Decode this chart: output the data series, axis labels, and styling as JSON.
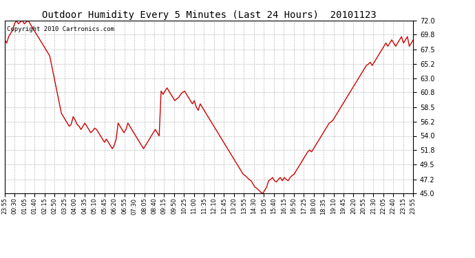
{
  "title": "Outdoor Humidity Every 5 Minutes (Last 24 Hours)  20101123",
  "copyright_text": "Copyright 2010 Cartronics.com",
  "line_color": "#cc0000",
  "background_color": "#ffffff",
  "plot_bg_color": "#ffffff",
  "grid_color": "#aaaaaa",
  "ylim": [
    45.0,
    72.0
  ],
  "yticks": [
    45.0,
    47.2,
    49.5,
    51.8,
    54.0,
    56.2,
    58.5,
    60.8,
    63.0,
    65.2,
    67.5,
    69.8,
    72.0
  ],
  "xtick_labels": [
    "23:55",
    "00:30",
    "01:05",
    "01:40",
    "02:15",
    "02:50",
    "03:25",
    "04:00",
    "04:35",
    "05:10",
    "05:45",
    "06:20",
    "06:55",
    "07:30",
    "08:05",
    "08:40",
    "09:15",
    "09:50",
    "10:25",
    "11:00",
    "11:35",
    "12:10",
    "12:45",
    "13:20",
    "13:55",
    "14:30",
    "15:05",
    "15:40",
    "16:15",
    "16:50",
    "17:25",
    "18:00",
    "18:35",
    "19:10",
    "19:45",
    "20:20",
    "20:55",
    "21:30",
    "22:05",
    "22:40",
    "23:15",
    "23:55"
  ],
  "humidity_values": [
    69.0,
    68.5,
    69.5,
    70.0,
    70.5,
    71.5,
    72.0,
    71.5,
    71.8,
    72.0,
    71.5,
    71.8,
    72.0,
    71.5,
    71.0,
    70.5,
    70.0,
    69.5,
    69.0,
    68.5,
    68.0,
    67.5,
    67.0,
    66.5,
    65.0,
    63.5,
    62.0,
    60.5,
    59.0,
    57.5,
    57.0,
    56.5,
    56.0,
    55.5,
    55.8,
    57.0,
    56.5,
    55.8,
    55.5,
    55.0,
    55.5,
    56.0,
    55.5,
    55.0,
    54.5,
    54.8,
    55.2,
    55.0,
    54.5,
    54.0,
    53.5,
    53.0,
    53.5,
    53.0,
    52.5,
    52.0,
    52.5,
    53.5,
    56.0,
    55.5,
    55.0,
    54.5,
    55.0,
    56.0,
    55.5,
    55.0,
    54.5,
    54.0,
    53.5,
    53.0,
    52.5,
    52.0,
    52.5,
    53.0,
    53.5,
    54.0,
    54.5,
    55.0,
    54.5,
    54.0,
    61.0,
    60.5,
    61.0,
    61.5,
    61.0,
    60.5,
    60.0,
    59.5,
    59.8,
    60.0,
    60.5,
    60.8,
    61.0,
    60.5,
    60.0,
    59.5,
    59.0,
    59.5,
    58.5,
    58.0,
    59.0,
    58.5,
    58.0,
    57.5,
    57.0,
    56.5,
    56.0,
    55.5,
    55.0,
    54.5,
    54.0,
    53.5,
    53.0,
    52.5,
    52.0,
    51.5,
    51.0,
    50.5,
    50.0,
    49.5,
    49.0,
    48.5,
    48.0,
    47.8,
    47.5,
    47.2,
    47.0,
    46.5,
    46.0,
    45.8,
    45.5,
    45.2,
    45.0,
    45.5,
    46.0,
    47.0,
    47.2,
    47.5,
    47.0,
    46.8,
    47.2,
    47.5,
    47.0,
    47.5,
    47.2,
    47.0,
    47.5,
    47.8,
    48.0,
    48.5,
    49.0,
    49.5,
    50.0,
    50.5,
    51.0,
    51.5,
    51.8,
    51.5,
    52.0,
    52.5,
    53.0,
    53.5,
    54.0,
    54.5,
    55.0,
    55.5,
    56.0,
    56.2,
    56.5,
    57.0,
    57.5,
    58.0,
    58.5,
    59.0,
    59.5,
    60.0,
    60.5,
    61.0,
    61.5,
    62.0,
    62.5,
    63.0,
    63.5,
    64.0,
    64.5,
    65.0,
    65.2,
    65.5,
    65.0,
    65.5,
    66.0,
    66.5,
    67.0,
    67.5,
    68.0,
    68.5,
    68.0,
    68.5,
    69.0,
    68.5,
    68.0,
    68.5,
    69.0,
    69.5,
    68.5,
    69.0,
    69.5,
    68.0,
    68.5,
    69.0
  ]
}
